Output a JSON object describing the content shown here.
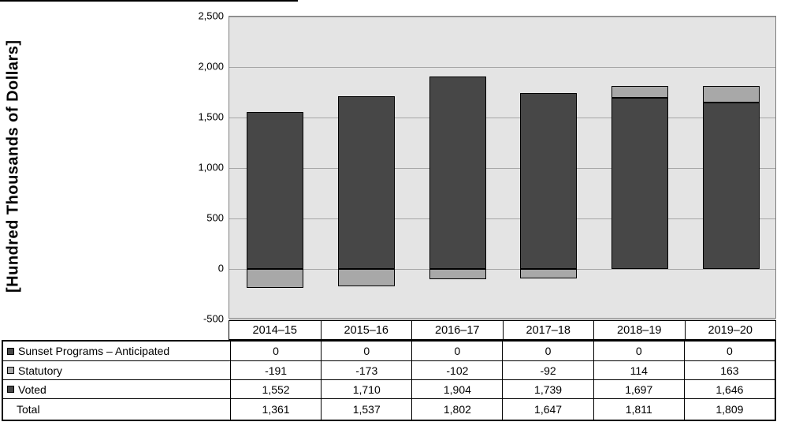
{
  "chart_data": {
    "type": "bar",
    "stacked": true,
    "y_axis_title": "[Hundred Thousands of Dollars]",
    "categories": [
      "2014–15",
      "2015–16",
      "2016–17",
      "2017–18",
      "2018–19",
      "2019–20"
    ],
    "series": [
      {
        "name": "Sunset Programs – Anticipated",
        "color": "#474747",
        "values": [
          0,
          0,
          0,
          0,
          0,
          0
        ]
      },
      {
        "name": "Statutory",
        "color": "#a8a8a8",
        "values": [
          -191,
          -173,
          -102,
          -92,
          114,
          163
        ]
      },
      {
        "name": "Voted",
        "color": "#474747",
        "values": [
          1552,
          1710,
          1904,
          1739,
          1697,
          1646
        ]
      }
    ],
    "totals": {
      "label": "Total",
      "values": [
        1361,
        1537,
        1802,
        1647,
        1811,
        1809
      ]
    },
    "ylim": [
      -500,
      2500
    ],
    "y_ticks": [
      2500,
      2000,
      1500,
      1000,
      500,
      0,
      -500
    ],
    "grid": true,
    "legend_position": "table-left",
    "colors": {
      "plot_background": "#e4e4e4",
      "gridline": "#a6a6a6",
      "bar_dark": "#474747",
      "bar_light": "#a8a8a8"
    }
  }
}
